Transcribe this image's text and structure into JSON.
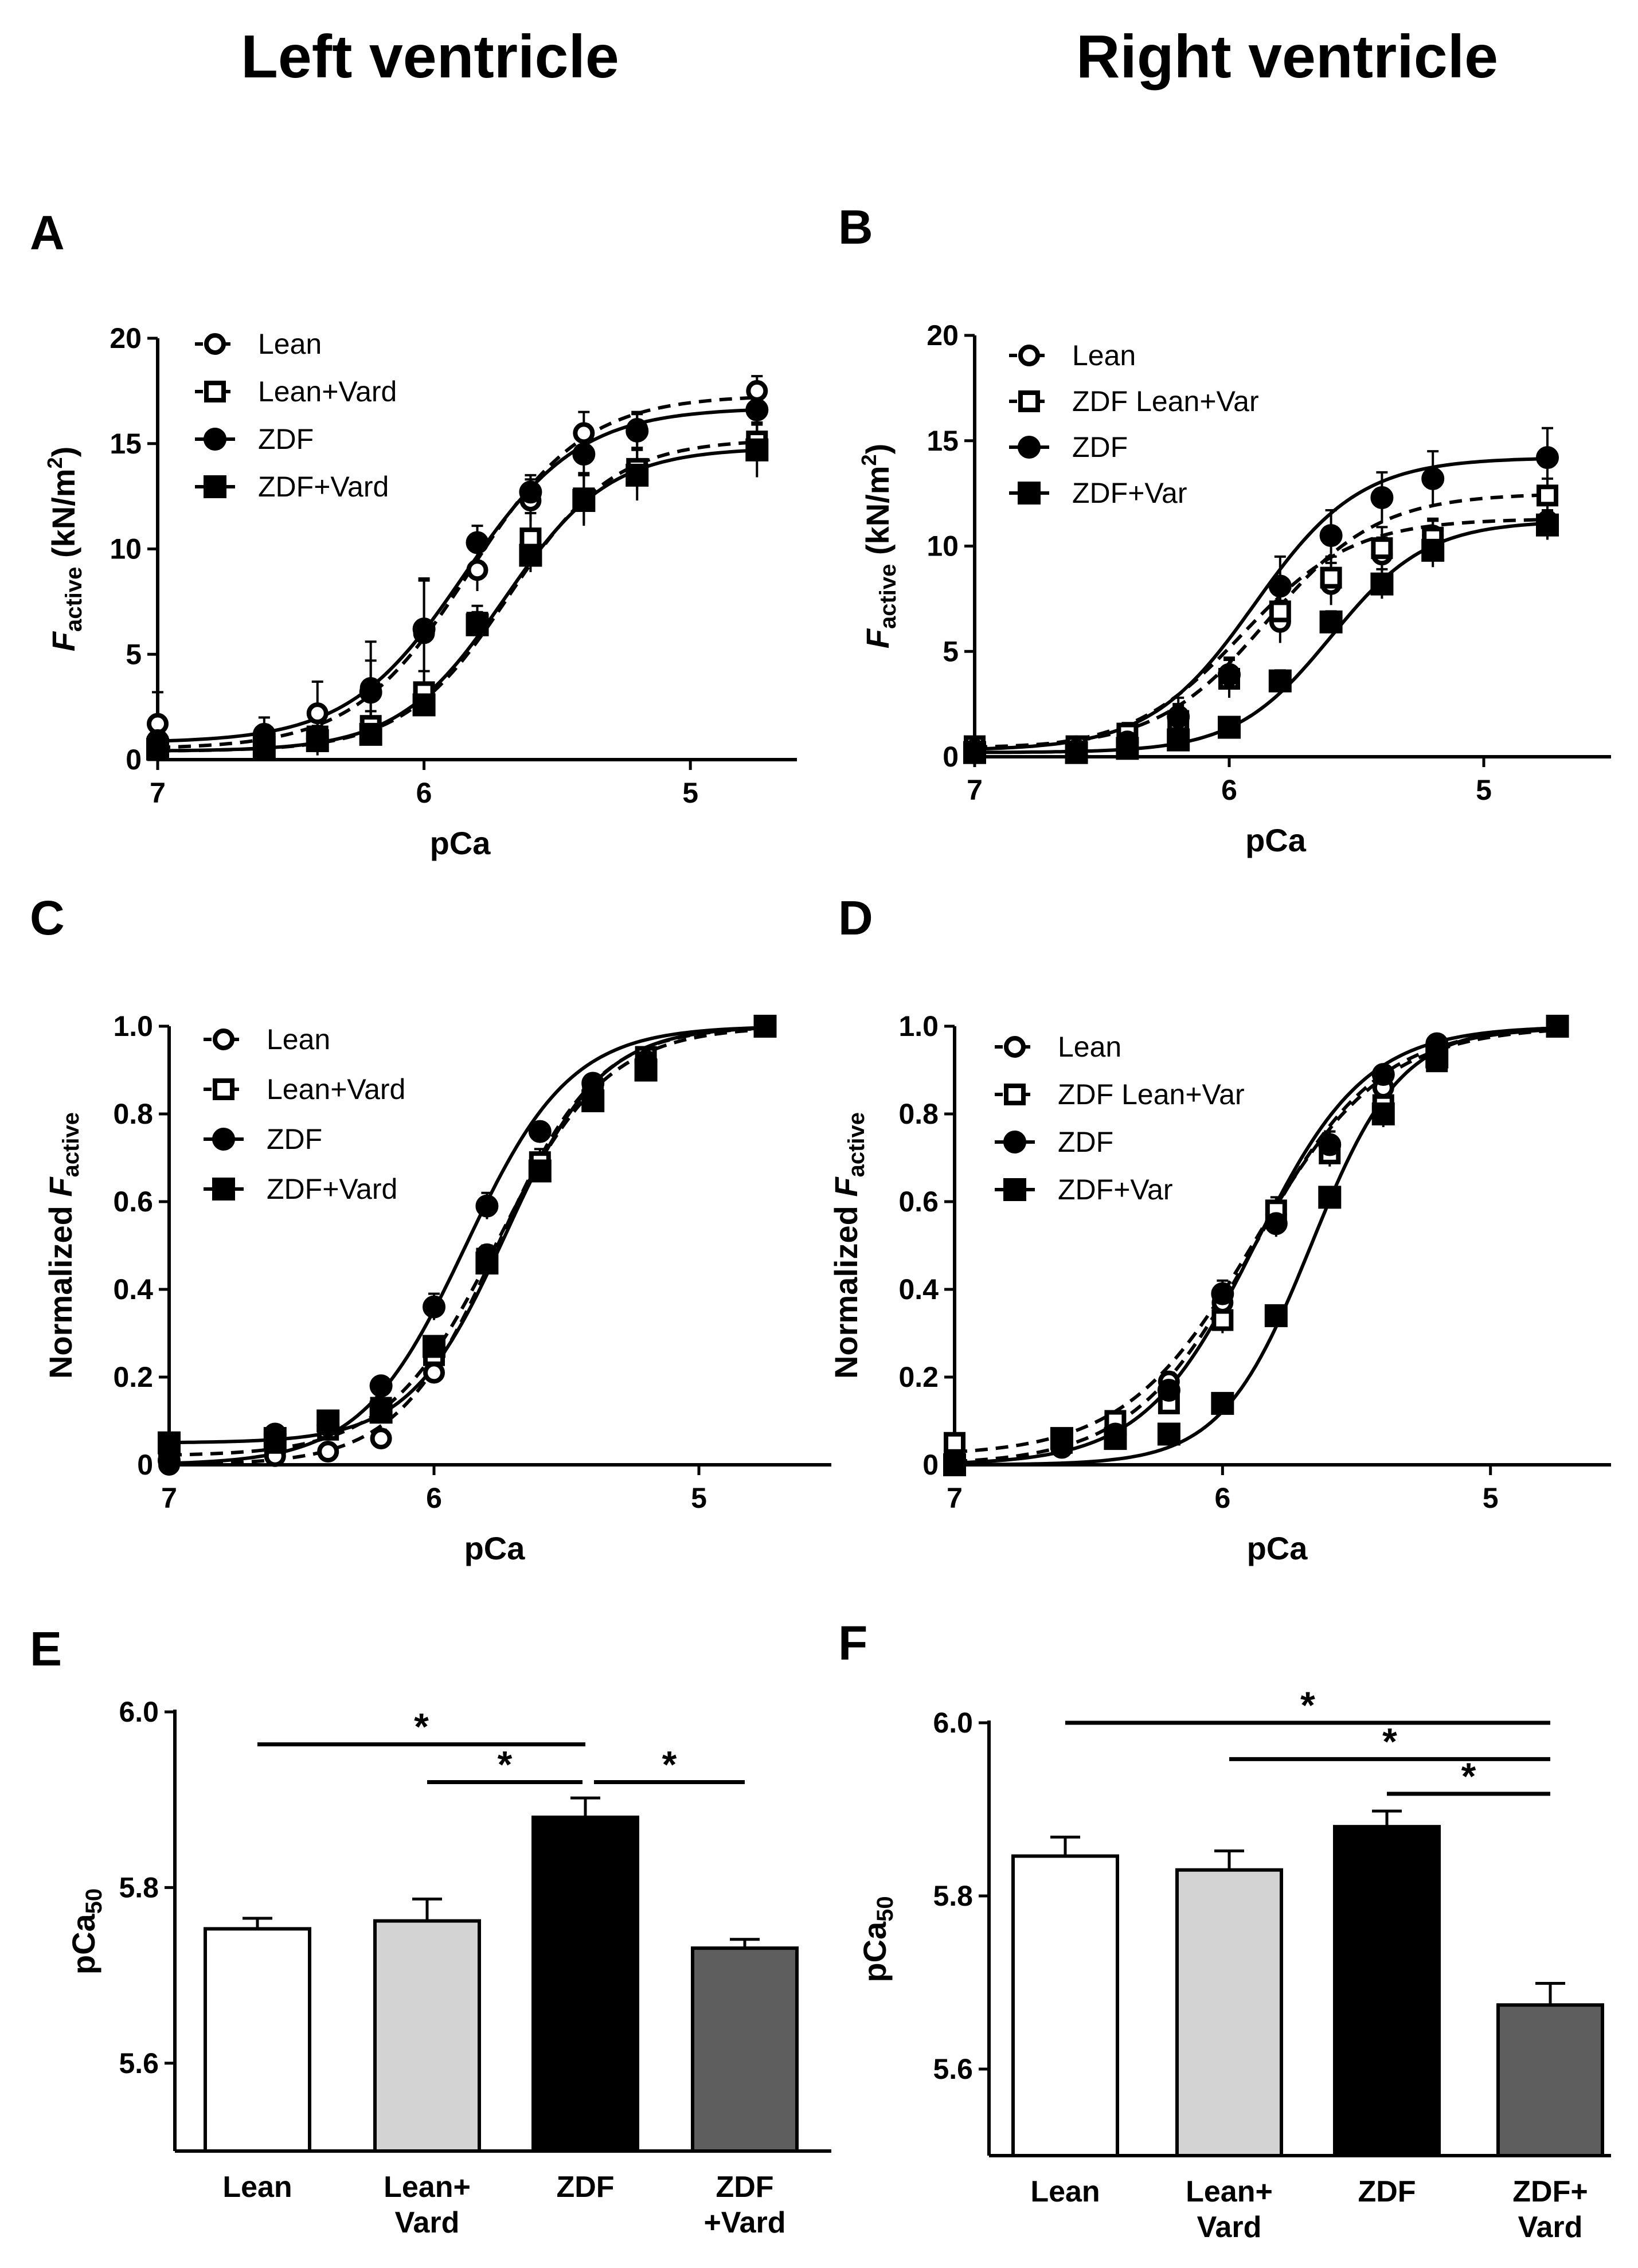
{
  "column_titles": [
    "Left ventricle",
    "Right ventricle"
  ],
  "colors": {
    "ink": "#000000",
    "lean_fill": "#ffffff",
    "lean_vard_fill": "#d3d3d3",
    "zdf_fill": "#000000",
    "zdf_vard_fill": "#5e5e5e"
  },
  "chart_data": [
    {
      "panel": "A",
      "type": "line",
      "column": "Left ventricle",
      "xlabel": "pCa",
      "ylabel_main": "F",
      "ylabel_sub": "active",
      "ylabel_unit": " (kN/m",
      "ylabel_sup": "2",
      "ylabel_close": ")",
      "xlim": [
        7,
        4.6
      ],
      "ylim": [
        0,
        20
      ],
      "xticks": [
        {
          "v": 7,
          "label": "7"
        },
        {
          "v": 6,
          "label": "6"
        },
        {
          "v": 5,
          "label": "5"
        }
      ],
      "yticks": [
        {
          "v": 0,
          "label": "0"
        },
        {
          "v": 5,
          "label": "5"
        },
        {
          "v": 10,
          "label": "10"
        },
        {
          "v": 15,
          "label": "15"
        },
        {
          "v": 20,
          "label": "20"
        }
      ],
      "x": [
        7.0,
        6.6,
        6.4,
        6.2,
        6.0,
        5.8,
        5.6,
        5.4,
        5.2,
        4.75
      ],
      "series": [
        {
          "name": "Lean",
          "marker": "circle",
          "filled": false,
          "dashed": true,
          "values": [
            1.7,
            0.7,
            2.2,
            3.4,
            6.0,
            9.0,
            12.3,
            15.5,
            15.7,
            17.5
          ],
          "errors": [
            1.5,
            0.6,
            1.5,
            2.2,
            2.5,
            1.0,
            1.0,
            1.0,
            0.8,
            0.7
          ],
          "fit": {
            "bottom": 0.5,
            "top": 17.3,
            "ec50": 5.83,
            "hill": 2.0
          }
        },
        {
          "name": "Lean+Vard",
          "marker": "square",
          "filled": false,
          "dashed": true,
          "values": [
            0.6,
            0.6,
            1.1,
            1.6,
            3.2,
            6.5,
            10.5,
            12.4,
            13.8,
            15.1
          ],
          "errors": [
            0.4,
            0.4,
            0.5,
            0.7,
            1.0,
            0.8,
            1.2,
            1.2,
            1.0,
            0.8
          ],
          "fit": {
            "bottom": 0.4,
            "top": 15.2,
            "ec50": 5.68,
            "hill": 2.2
          }
        },
        {
          "name": "ZDF",
          "marker": "circle",
          "filled": true,
          "dashed": false,
          "values": [
            0.9,
            1.2,
            1.0,
            3.2,
            6.2,
            10.3,
            12.7,
            14.5,
            15.6,
            16.6
          ],
          "errors": [
            0.6,
            0.8,
            0.8,
            1.5,
            2.4,
            0.8,
            0.8,
            1.2,
            0.8,
            1.0
          ],
          "fit": {
            "bottom": 0.8,
            "top": 16.7,
            "ec50": 5.85,
            "hill": 2.0
          }
        },
        {
          "name": "ZDF+Vard",
          "marker": "square",
          "filled": true,
          "dashed": false,
          "values": [
            0.5,
            0.6,
            0.9,
            1.2,
            2.6,
            6.4,
            9.7,
            12.3,
            13.5,
            14.7
          ],
          "errors": [
            0.3,
            0.4,
            0.4,
            0.5,
            0.5,
            0.6,
            0.8,
            1.2,
            1.2,
            1.3
          ],
          "fit": {
            "bottom": 0.4,
            "top": 14.8,
            "ec50": 5.7,
            "hill": 2.2
          }
        }
      ]
    },
    {
      "panel": "B",
      "type": "line",
      "column": "Right ventricle",
      "xlabel": "pCa",
      "ylabel_main": "F",
      "ylabel_sub": "active",
      "ylabel_unit": " (kN/m",
      "ylabel_sup": "2",
      "ylabel_close": ")",
      "xlim": [
        7,
        4.5
      ],
      "ylim": [
        0,
        20
      ],
      "xticks": [
        {
          "v": 7,
          "label": "7"
        },
        {
          "v": 6,
          "label": "6"
        },
        {
          "v": 5,
          "label": "5"
        }
      ],
      "yticks": [
        {
          "v": 0,
          "label": "0"
        },
        {
          "v": 5,
          "label": "5"
        },
        {
          "v": 10,
          "label": "10"
        },
        {
          "v": 15,
          "label": "15"
        },
        {
          "v": 20,
          "label": "20"
        }
      ],
      "x": [
        7.0,
        6.6,
        6.4,
        6.2,
        6.0,
        5.8,
        5.6,
        5.4,
        5.2,
        4.75
      ],
      "series": [
        {
          "name": "Lean",
          "marker": "circle",
          "filled": false,
          "dashed": true,
          "values": [
            0.4,
            0.5,
            0.9,
            1.7,
            3.9,
            6.4,
            8.2,
            9.6,
            10.5,
            11.2
          ],
          "errors": [
            0.3,
            0.4,
            0.6,
            0.8,
            0.8,
            1.0,
            1.0,
            0.8,
            0.8,
            0.8
          ],
          "fit": {
            "bottom": 0.3,
            "top": 11.3,
            "ec50": 5.95,
            "hill": 2.0
          }
        },
        {
          "name": "ZDF Lean+Var",
          "marker": "square",
          "filled": false,
          "dashed": true,
          "values": [
            0.5,
            0.5,
            1.1,
            1.7,
            3.7,
            6.9,
            8.5,
            9.9,
            10.4,
            12.4
          ],
          "errors": [
            0.3,
            0.3,
            0.5,
            0.7,
            0.9,
            1.0,
            1.0,
            1.0,
            0.8,
            0.8
          ],
          "fit": {
            "bottom": 0.4,
            "top": 12.5,
            "ec50": 5.85,
            "hill": 2.0
          }
        },
        {
          "name": "ZDF",
          "marker": "circle",
          "filled": true,
          "dashed": false,
          "values": [
            0.3,
            0.3,
            0.7,
            1.9,
            3.9,
            8.1,
            10.5,
            12.3,
            13.2,
            14.2
          ],
          "errors": [
            0.3,
            0.3,
            0.5,
            0.9,
            0.8,
            1.4,
            1.2,
            1.2,
            1.3,
            1.4
          ],
          "fit": {
            "bottom": 0.3,
            "top": 14.2,
            "ec50": 5.9,
            "hill": 2.1
          }
        },
        {
          "name": "ZDF+Var",
          "marker": "square",
          "filled": true,
          "dashed": false,
          "values": [
            0.2,
            0.2,
            0.4,
            0.8,
            1.4,
            3.6,
            6.4,
            8.2,
            9.8,
            11.0
          ],
          "errors": [
            0.2,
            0.2,
            0.3,
            0.4,
            0.4,
            0.5,
            0.5,
            0.7,
            0.8,
            0.7
          ],
          "fit": {
            "bottom": 0.2,
            "top": 11.2,
            "ec50": 5.6,
            "hill": 2.3
          }
        }
      ]
    },
    {
      "panel": "C",
      "type": "line",
      "column": "Left ventricle",
      "xlabel": "pCa",
      "ylabel_main": "Normalized ",
      "ylabel_italic": "F",
      "ylabel_sub": "active",
      "xlim": [
        7,
        4.5
      ],
      "ylim": [
        0,
        1.0
      ],
      "xticks": [
        {
          "v": 7,
          "label": "7"
        },
        {
          "v": 6,
          "label": "6"
        },
        {
          "v": 5,
          "label": "5"
        }
      ],
      "yticks": [
        {
          "v": 0,
          "label": "0"
        },
        {
          "v": 0.2,
          "label": "0.2"
        },
        {
          "v": 0.4,
          "label": "0.4"
        },
        {
          "v": 0.6,
          "label": "0.6"
        },
        {
          "v": 0.8,
          "label": "0.8"
        },
        {
          "v": 1.0,
          "label": "1.0"
        }
      ],
      "x": [
        7.0,
        6.6,
        6.4,
        6.2,
        6.0,
        5.8,
        5.6,
        5.4,
        5.2,
        4.75
      ],
      "series": [
        {
          "name": "Lean",
          "marker": "circle",
          "filled": false,
          "dashed": true,
          "values": [
            0.0,
            0.02,
            0.03,
            0.06,
            0.21,
            0.48,
            0.69,
            0.86,
            0.92,
            1.0
          ],
          "errors": [
            0.01,
            0.01,
            0.01,
            0.02,
            0.02,
            0.02,
            0.02,
            0.02,
            0.02,
            0.0
          ],
          "fit": {
            "bottom": 0.0,
            "top": 1.0,
            "ec50": 5.76,
            "hill": 2.3
          }
        },
        {
          "name": "Lean+Vard",
          "marker": "square",
          "filled": false,
          "dashed": true,
          "values": [
            0.03,
            0.05,
            0.08,
            0.13,
            0.25,
            0.47,
            0.69,
            0.83,
            0.93,
            1.0
          ],
          "errors": [
            0.02,
            0.02,
            0.02,
            0.02,
            0.02,
            0.02,
            0.03,
            0.02,
            0.02,
            0.0
          ],
          "fit": {
            "bottom": 0.02,
            "top": 1.0,
            "ec50": 5.76,
            "hill": 2.1
          }
        },
        {
          "name": "ZDF",
          "marker": "circle",
          "filled": true,
          "dashed": false,
          "values": [
            0.01,
            0.07,
            0.09,
            0.18,
            0.36,
            0.59,
            0.76,
            0.87,
            0.92,
            1.0
          ],
          "errors": [
            0.01,
            0.02,
            0.02,
            0.02,
            0.03,
            0.03,
            0.02,
            0.02,
            0.02,
            0.0
          ],
          "fit": {
            "bottom": 0.0,
            "top": 1.0,
            "ec50": 5.88,
            "hill": 2.2
          }
        },
        {
          "name": "ZDF+Vard",
          "marker": "square",
          "filled": true,
          "dashed": false,
          "values": [
            0.05,
            0.06,
            0.1,
            0.12,
            0.27,
            0.46,
            0.67,
            0.83,
            0.9,
            1.0
          ],
          "errors": [
            0.02,
            0.02,
            0.02,
            0.02,
            0.02,
            0.02,
            0.02,
            0.02,
            0.02,
            0.0
          ],
          "fit": {
            "bottom": 0.05,
            "top": 1.0,
            "ec50": 5.73,
            "hill": 2.4
          }
        }
      ]
    },
    {
      "panel": "D",
      "type": "line",
      "column": "Right ventricle",
      "xlabel": "pCa",
      "ylabel_main": "Normalized ",
      "ylabel_italic": "F",
      "ylabel_sub": "active",
      "xlim": [
        7,
        4.55
      ],
      "ylim": [
        0,
        1.0
      ],
      "xticks": [
        {
          "v": 7,
          "label": "7"
        },
        {
          "v": 6,
          "label": "6"
        },
        {
          "v": 5,
          "label": "5"
        }
      ],
      "yticks": [
        {
          "v": 0,
          "label": "0"
        },
        {
          "v": 0.2,
          "label": "0.2"
        },
        {
          "v": 0.4,
          "label": "0.4"
        },
        {
          "v": 0.6,
          "label": "0.6"
        },
        {
          "v": 0.8,
          "label": "0.8"
        },
        {
          "v": 1.0,
          "label": "1.0"
        }
      ],
      "x": [
        7.0,
        6.6,
        6.4,
        6.2,
        6.0,
        5.8,
        5.6,
        5.4,
        5.2,
        4.75
      ],
      "series": [
        {
          "name": "Lean",
          "marker": "circle",
          "filled": false,
          "dashed": true,
          "values": [
            0.01,
            0.04,
            0.09,
            0.19,
            0.37,
            0.57,
            0.73,
            0.86,
            0.93,
            1.0
          ],
          "errors": [
            0.01,
            0.01,
            0.02,
            0.02,
            0.03,
            0.03,
            0.03,
            0.02,
            0.02,
            0.0
          ],
          "fit": {
            "bottom": 0.0,
            "top": 1.0,
            "ec50": 5.88,
            "hill": 1.9
          }
        },
        {
          "name": "ZDF Lean+Var",
          "marker": "square",
          "filled": false,
          "dashed": true,
          "values": [
            0.05,
            0.05,
            0.1,
            0.14,
            0.33,
            0.58,
            0.71,
            0.82,
            0.92,
            1.0
          ],
          "errors": [
            0.02,
            0.02,
            0.02,
            0.02,
            0.03,
            0.03,
            0.03,
            0.02,
            0.02,
            0.0
          ],
          "fit": {
            "bottom": 0.02,
            "top": 1.0,
            "ec50": 5.88,
            "hill": 1.8
          }
        },
        {
          "name": "ZDF",
          "marker": "circle",
          "filled": true,
          "dashed": false,
          "values": [
            0.0,
            0.04,
            0.07,
            0.17,
            0.39,
            0.55,
            0.73,
            0.89,
            0.96,
            1.0
          ],
          "errors": [
            0.01,
            0.01,
            0.02,
            0.02,
            0.03,
            0.03,
            0.03,
            0.02,
            0.01,
            0.0
          ],
          "fit": {
            "bottom": 0.0,
            "top": 1.0,
            "ec50": 5.88,
            "hill": 2.1
          }
        },
        {
          "name": "ZDF+Var",
          "marker": "square",
          "filled": true,
          "dashed": false,
          "values": [
            0.0,
            0.06,
            0.06,
            0.07,
            0.14,
            0.34,
            0.61,
            0.8,
            0.93,
            1.0
          ],
          "errors": [
            0.01,
            0.01,
            0.01,
            0.02,
            0.02,
            0.02,
            0.02,
            0.03,
            0.02,
            0.0
          ],
          "fit": {
            "bottom": 0.0,
            "top": 1.0,
            "ec50": 5.67,
            "hill": 2.6
          }
        }
      ]
    },
    {
      "panel": "E",
      "type": "bar",
      "column": "Left ventricle",
      "ylabel_main": "pCa",
      "ylabel_sub": "50",
      "ylim": [
        5.5,
        6.0
      ],
      "yticks": [
        {
          "v": 5.6,
          "label": "5.6"
        },
        {
          "v": 5.8,
          "label": "5.8"
        },
        {
          "v": 6.0,
          "label": "6.0"
        }
      ],
      "categories": [
        [
          "Lean"
        ],
        [
          "Lean+",
          "Vard"
        ],
        [
          "ZDF"
        ],
        [
          "ZDF",
          "+Vard"
        ]
      ],
      "values": [
        5.753,
        5.762,
        5.88,
        5.731
      ],
      "errors": [
        0.012,
        0.025,
        0.022,
        0.01
      ],
      "fills": [
        "lean_fill",
        "lean_vard_fill",
        "zdf_fill",
        "zdf_vard_fill"
      ],
      "significance": [
        {
          "from": 0,
          "to": 2,
          "y": 5.963,
          "label": "*"
        },
        {
          "from": 1,
          "to": 2,
          "y": 5.92,
          "label": "*"
        },
        {
          "from": 2,
          "to": 3,
          "y": 5.92,
          "label": "*"
        }
      ]
    },
    {
      "panel": "F",
      "type": "bar",
      "column": "Right ventricle",
      "ylabel_main": "pCa",
      "ylabel_sub": "50",
      "ylim": [
        5.5,
        6.0
      ],
      "yticks": [
        {
          "v": 5.6,
          "label": "5.6"
        },
        {
          "v": 5.8,
          "label": "5.8"
        },
        {
          "v": 6.0,
          "label": "6.0"
        }
      ],
      "categories": [
        [
          "Lean"
        ],
        [
          "Lean+",
          "Vard"
        ],
        [
          "ZDF"
        ],
        [
          "ZDF+",
          "Vard"
        ]
      ],
      "values": [
        5.846,
        5.83,
        5.88,
        5.674
      ],
      "errors": [
        0.022,
        0.022,
        0.018,
        0.025
      ],
      "fills": [
        "lean_fill",
        "lean_vard_fill",
        "zdf_fill",
        "zdf_vard_fill"
      ],
      "significance": [
        {
          "from": 0,
          "to": 3,
          "y": 6.0,
          "label": "*"
        },
        {
          "from": 1,
          "to": 3,
          "y": 5.958,
          "label": "*"
        },
        {
          "from": 2,
          "to": 3,
          "y": 5.918,
          "label": "*"
        }
      ]
    }
  ]
}
